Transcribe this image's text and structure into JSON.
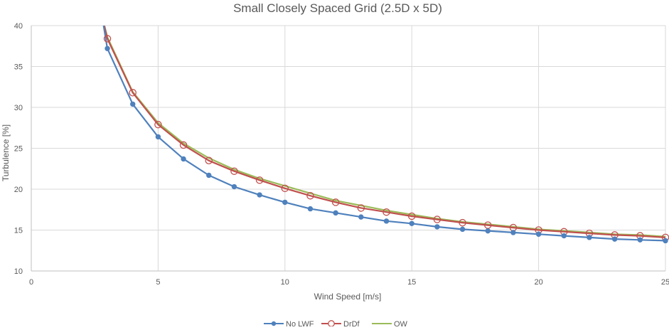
{
  "chart_data": {
    "type": "line",
    "title": "Small Closely Spaced Grid (2.5D x 5D)",
    "xlabel": "Wind Speed [m/s]",
    "ylabel": "Turbulence [%]",
    "xlim": [
      0,
      25
    ],
    "ylim": [
      10,
      40
    ],
    "xticks": [
      0,
      5,
      10,
      15,
      20,
      25
    ],
    "yticks": [
      10,
      15,
      20,
      25,
      30,
      35,
      40
    ],
    "grid": true,
    "legend_position": "bottom",
    "x": [
      3,
      4,
      5,
      6,
      7,
      8,
      9,
      10,
      11,
      12,
      13,
      14,
      15,
      16,
      17,
      18,
      19,
      20,
      21,
      22,
      23,
      24,
      25
    ],
    "series": [
      {
        "name": "No LWF",
        "color": "#4f81bd",
        "marker": "filled-circle",
        "lead_in": {
          "x": 2.85,
          "y": 40
        },
        "values": [
          37.2,
          30.4,
          26.4,
          23.7,
          21.7,
          20.3,
          19.3,
          18.4,
          17.6,
          17.1,
          16.6,
          16.1,
          15.8,
          15.4,
          15.1,
          14.9,
          14.7,
          14.5,
          14.3,
          14.1,
          13.9,
          13.8,
          13.7
        ]
      },
      {
        "name": "DrDf",
        "color": "#c0504d",
        "marker": "open-circle",
        "lead_in": {
          "x": 2.8,
          "y": 41
        },
        "values": [
          38.4,
          31.8,
          27.9,
          25.4,
          23.5,
          22.2,
          21.1,
          20.1,
          19.2,
          18.4,
          17.7,
          17.2,
          16.7,
          16.3,
          15.9,
          15.6,
          15.3,
          15.0,
          14.8,
          14.6,
          14.4,
          14.3,
          14.1
        ]
      },
      {
        "name": "OW",
        "color": "#9bbb59",
        "marker": "none",
        "lead_in": {
          "x": 2.8,
          "y": 41
        },
        "values": [
          38.6,
          31.9,
          28.1,
          25.6,
          23.8,
          22.4,
          21.3,
          20.4,
          19.5,
          18.6,
          18.0,
          17.4,
          16.9,
          16.4,
          16.0,
          15.7,
          15.4,
          15.1,
          14.9,
          14.7,
          14.5,
          14.4,
          14.2
        ]
      }
    ]
  }
}
